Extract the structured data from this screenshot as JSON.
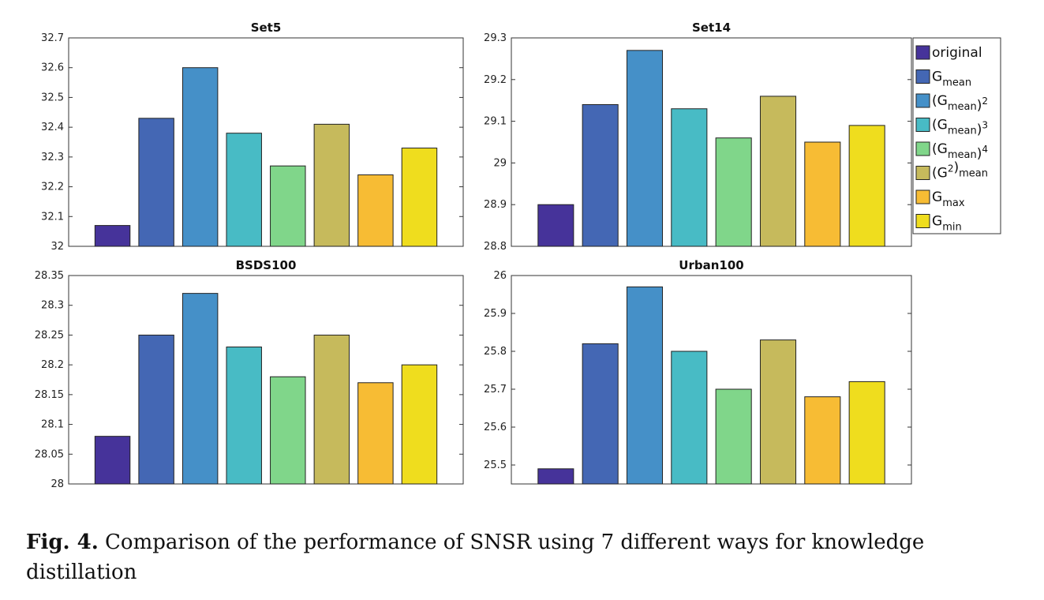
{
  "caption": {
    "label": "Fig. 4.",
    "text": "Comparison of the performance of SNSR using 7 different ways for knowledge distillation"
  },
  "legend": [
    {
      "base": "original",
      "sub": "",
      "sup": "",
      "color": "#46339A"
    },
    {
      "base": "G",
      "sub": "mean",
      "sup": "",
      "color": "#4467B4"
    },
    {
      "base": "(G",
      "sub": "mean",
      "close": ")",
      "sup": "2",
      "color": "#4590C8"
    },
    {
      "base": "(G",
      "sub": "mean",
      "close": ")",
      "sup": "3",
      "color": "#48BBC5"
    },
    {
      "base": "(G",
      "sub": "mean",
      "close": ")",
      "sup": "4",
      "color": "#80D68A"
    },
    {
      "base": "(G",
      "sup_inner": "2",
      "close": ")",
      "sub": "mean",
      "sup": "",
      "color": "#C6BA5C"
    },
    {
      "base": "G",
      "sub": "max",
      "sup": "",
      "color": "#F7BC34"
    },
    {
      "base": "G",
      "sub": "min",
      "sup": "",
      "color": "#EFDD1E"
    }
  ],
  "chart_data": [
    {
      "type": "bar",
      "title": "Set5",
      "categories": [
        "original",
        "Gmean",
        "(Gmean)^2",
        "(Gmean)^3",
        "(Gmean)^4",
        "(G^2)mean",
        "Gmax",
        "Gmin"
      ],
      "values": [
        32.07,
        32.43,
        32.6,
        32.38,
        32.27,
        32.41,
        32.24,
        32.33
      ],
      "ylim": [
        32,
        32.7
      ],
      "yticks": [
        "32",
        "32.1",
        "32.2",
        "32.3",
        "32.4",
        "32.5",
        "32.6",
        "32.7"
      ],
      "ytick_values": [
        32,
        32.1,
        32.2,
        32.3,
        32.4,
        32.5,
        32.6,
        32.7
      ]
    },
    {
      "type": "bar",
      "title": "Set14",
      "categories": [
        "original",
        "Gmean",
        "(Gmean)^2",
        "(Gmean)^3",
        "(Gmean)^4",
        "(G^2)mean",
        "Gmax",
        "Gmin"
      ],
      "values": [
        28.9,
        29.14,
        29.27,
        29.13,
        29.06,
        29.16,
        29.05,
        29.09
      ],
      "ylim": [
        28.8,
        29.3
      ],
      "yticks": [
        "28.8",
        "28.9",
        "29",
        "29.1",
        "29.2",
        "29.3"
      ],
      "ytick_values": [
        28.8,
        28.9,
        29.0,
        29.1,
        29.2,
        29.3
      ]
    },
    {
      "type": "bar",
      "title": "BSDS100",
      "categories": [
        "original",
        "Gmean",
        "(Gmean)^2",
        "(Gmean)^3",
        "(Gmean)^4",
        "(G^2)mean",
        "Gmax",
        "Gmin"
      ],
      "values": [
        28.08,
        28.25,
        28.32,
        28.23,
        28.18,
        28.25,
        28.17,
        28.2
      ],
      "ylim": [
        28,
        28.35
      ],
      "yticks": [
        "28",
        "28.05",
        "28.1",
        "28.15",
        "28.2",
        "28.25",
        "28.3",
        "28.35"
      ],
      "ytick_values": [
        28,
        28.05,
        28.1,
        28.15,
        28.2,
        28.25,
        28.3,
        28.35
      ]
    },
    {
      "type": "bar",
      "title": "Urban100",
      "categories": [
        "original",
        "Gmean",
        "(Gmean)^2",
        "(Gmean)^3",
        "(Gmean)^4",
        "(G^2)mean",
        "Gmax",
        "Gmin"
      ],
      "values": [
        25.49,
        25.82,
        25.97,
        25.8,
        25.7,
        25.83,
        25.68,
        25.72
      ],
      "ylim": [
        25.45,
        26.0
      ],
      "yticks": [
        "25.5",
        "25.6",
        "25.7",
        "25.8",
        "25.9",
        "26"
      ],
      "ytick_values": [
        25.5,
        25.6,
        25.7,
        25.8,
        25.9,
        26.0
      ]
    }
  ]
}
